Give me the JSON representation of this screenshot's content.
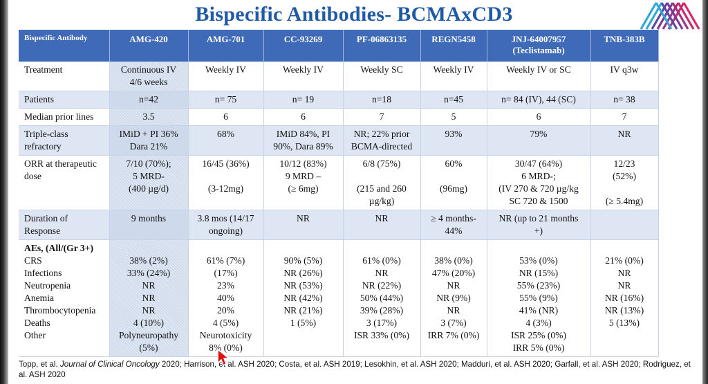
{
  "title": "Bispecific Antibodies- BCMAxCD3",
  "colors": {
    "header_bg": "#3e6ab7",
    "title": "#1f5aa6",
    "row_shade": "#dfe6f3"
  },
  "table": {
    "headers": [
      [
        "Bispecific Antibody"
      ],
      [
        "AMG-420"
      ],
      [
        "AMG-701"
      ],
      [
        "CC-93269"
      ],
      [
        "PF-06863135"
      ],
      [
        "REGN5458"
      ],
      [
        "JNJ-64007957",
        "(Teclistamab)"
      ],
      [
        "TNB-383B"
      ]
    ],
    "rows": [
      {
        "label": [
          "Treatment"
        ],
        "cells": [
          [
            "Continuous IV",
            "4/6 weeks"
          ],
          [
            "Weekly IV"
          ],
          [
            "Weekly IV"
          ],
          [
            "Weekly SC"
          ],
          [
            "Weekly IV"
          ],
          [
            "Weekly IV or SC"
          ],
          [
            "IV q3w"
          ]
        ]
      },
      {
        "label": [
          "Patients"
        ],
        "cells": [
          [
            "n=42"
          ],
          [
            "n= 75"
          ],
          [
            "n= 19"
          ],
          [
            "n=18"
          ],
          [
            "n=45"
          ],
          [
            "n= 84 (IV), 44 (SC)"
          ],
          [
            "n= 38"
          ]
        ]
      },
      {
        "label": [
          "Median prior lines"
        ],
        "cells": [
          [
            "3.5"
          ],
          [
            "6"
          ],
          [
            "6"
          ],
          [
            "7"
          ],
          [
            "5"
          ],
          [
            "6"
          ],
          [
            "7"
          ]
        ]
      },
      {
        "label": [
          "Triple-class",
          "refractory"
        ],
        "cells": [
          [
            "IMiD + PI 36%",
            "Dara 21%"
          ],
          [
            "68%"
          ],
          [
            "IMiD 84%, PI",
            "90%, Dara 89%"
          ],
          [
            "NR; 22% prior",
            "BCMA-directed"
          ],
          [
            "93%"
          ],
          [
            "79%"
          ],
          [
            "NR"
          ]
        ]
      },
      {
        "label": [
          "ORR at therapeutic",
          "dose"
        ],
        "cells": [
          [
            "7/10 (70%);",
            "5 MRD-",
            "(400 µg/d)"
          ],
          [
            "16/45 (36%)",
            "",
            "(3-12mg)"
          ],
          [
            "10/12 (83%)",
            "9 MRD –",
            "(≥ 6mg)"
          ],
          [
            "6/8 (75%)",
            "",
            "(215 and 260",
            "µg/kg)"
          ],
          [
            "60%",
            "",
            "(96mg)"
          ],
          [
            "30/47 (64%)",
            "6 MRD-;",
            "(IV 270 & 720 µg/kg",
            "SC 720 & 1500"
          ],
          [
            "12/23",
            "(52%)",
            "",
            "(≥ 5.4mg)"
          ]
        ]
      },
      {
        "label": [
          "Duration of",
          "Response"
        ],
        "cells": [
          [
            "9 months"
          ],
          [
            "3.8 mos (14/17",
            "ongoing)"
          ],
          [
            "NR"
          ],
          [
            "NR"
          ],
          [
            "≥ 4 months-",
            "44%"
          ],
          [
            "NR (up to 21 months",
            "+)"
          ],
          [
            ""
          ]
        ]
      },
      {
        "label": [
          "AEs,  (All/(Gr 3+)",
          "CRS",
          "Infections",
          "Neutropenia",
          "Anemia",
          "Thrombocytopenia",
          "Deaths",
          "Other"
        ],
        "cells": [
          [
            "",
            "38% (2%)",
            "33% (24%)",
            "NR",
            "NR",
            "NR",
            "4 (10%)",
            "Polyneuropathy",
            "(5%)"
          ],
          [
            "",
            "61% (7%)",
            "(17%)",
            "23%",
            "40%",
            "20%",
            "4 (5%)",
            "Neurotoxicity",
            "8% (0%)"
          ],
          [
            "",
            "90% (5%)",
            "NR (26%)",
            "NR (53%)",
            "NR (42%)",
            "NR (21%)",
            "1 (5%)"
          ],
          [
            "",
            "61% (0%)",
            "NR",
            "NR (22%)",
            "50% (44%)",
            "39% (28%)",
            "3 (17%)",
            "ISR 33% (0%)"
          ],
          [
            "",
            "38% (0%)",
            "47% (20%)",
            "NR",
            "NR (9%)",
            "NR",
            "3 (7%)",
            "IRR 7% (0%)"
          ],
          [
            "",
            "53% (0%)",
            "NR (15%)",
            "55% (23%)",
            "55% (9%)",
            "41% (NR)",
            "4 (3%)",
            "ISR 25% (0%)",
            "IRR 5% (0%)"
          ],
          [
            "",
            "21% (0%)",
            "NR",
            "NR",
            "NR (16%)",
            "NR (13%)",
            "5 (13%)"
          ]
        ]
      }
    ]
  },
  "footer": {
    "author1": "Topp, et al. ",
    "journal": "Journal of Clinical Oncology",
    "rest": " 2020; Harrison, et al. ASH 2020; Costa, et al. ASH 2019; Lesokhin, et al. ASH 2020; Madduri, et al. ASH 2020; Garfall, et al. ASH 2020; Rodriguez, et al. ASH 2020"
  }
}
